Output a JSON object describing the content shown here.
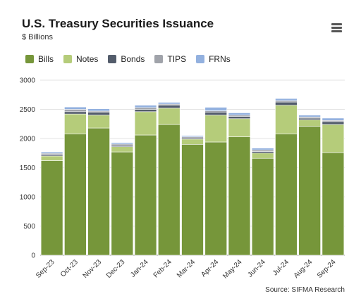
{
  "title": "U.S. Treasury Securities Issuance",
  "subtitle": "$ Billions",
  "source": "Source: SIFMA Research",
  "menu_icon": "hamburger-menu-icon",
  "chart_data": {
    "type": "bar",
    "stacked": true,
    "categories": [
      "Sep-23",
      "Oct-23",
      "Nov-23",
      "Dec-23",
      "Jan-24",
      "Feb-24",
      "Mar-24",
      "Apr-24",
      "May-24",
      "Jun-24",
      "Jul-24",
      "Aug-24",
      "Sep-24"
    ],
    "series": [
      {
        "name": "Bills",
        "color": "#76963a",
        "values": [
          1620,
          2080,
          2180,
          1770,
          2060,
          2240,
          1900,
          1940,
          2030,
          1660,
          2080,
          2210,
          1760
        ]
      },
      {
        "name": "Notes",
        "color": "#b5cc7a",
        "values": [
          80,
          340,
          220,
          90,
          400,
          280,
          90,
          460,
          310,
          90,
          490,
          110,
          480
        ]
      },
      {
        "name": "Bonds",
        "color": "#535c6b",
        "values": [
          25,
          40,
          50,
          25,
          40,
          50,
          20,
          50,
          40,
          25,
          55,
          30,
          50
        ]
      },
      {
        "name": "TIPS",
        "color": "#a0a3aa",
        "values": [
          20,
          40,
          20,
          20,
          30,
          20,
          20,
          25,
          20,
          30,
          25,
          20,
          20
        ]
      },
      {
        "name": "FRNs",
        "color": "#93b1df",
        "values": [
          25,
          40,
          40,
          25,
          40,
          30,
          20,
          60,
          40,
          30,
          35,
          30,
          40
        ]
      }
    ],
    "yticks": [
      "0",
      "500",
      "1000",
      "1500",
      "2000",
      "2500",
      "3000"
    ],
    "ylim": [
      0,
      3000
    ],
    "grid": true,
    "legend": "top-left"
  }
}
